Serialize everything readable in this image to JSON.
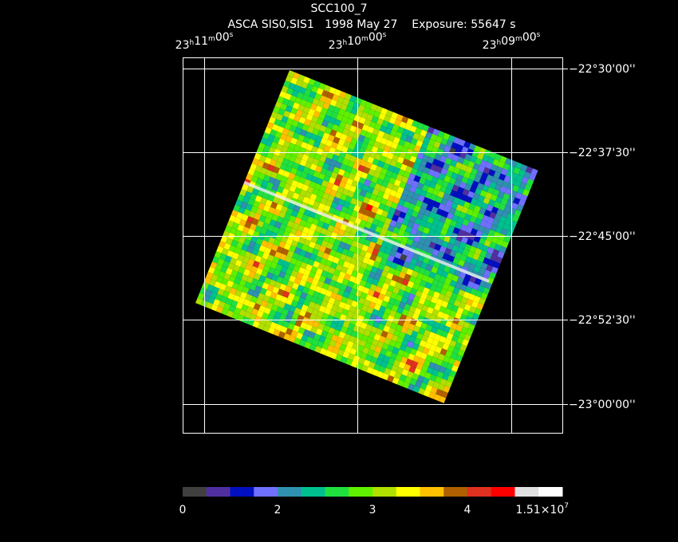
{
  "title": "SCC100_7",
  "subtitle": "ASCA SIS0,SIS1   1998 May 27    Exposure: 55647 s",
  "ra_units": [
    "h",
    "m",
    "s"
  ],
  "ra_labels": [
    {
      "h": "23",
      "m": "11",
      "s": "00"
    },
    {
      "h": "23",
      "m": "10",
      "s": "00"
    },
    {
      "h": "23",
      "m": "09",
      "s": "00"
    }
  ],
  "dec_labels": [
    "−22°30'00''",
    "−22°37'30''",
    "−22°45'00''",
    "−22°52'30''",
    "−23°00'00''"
  ],
  "colorbar": {
    "colors": [
      "#404040",
      "#5030a0",
      "#0010c0",
      "#7070ff",
      "#3090b0",
      "#00c090",
      "#20e040",
      "#60f000",
      "#b0e000",
      "#ffff00",
      "#ffc000",
      "#b06000",
      "#e03020",
      "#ff0000",
      "#e0e0e0",
      "#ffffff"
    ],
    "labels": [
      "0",
      "2",
      "3",
      "4"
    ],
    "max_label": {
      "mantissa": "1.51×10",
      "exponent": "7"
    }
  }
}
